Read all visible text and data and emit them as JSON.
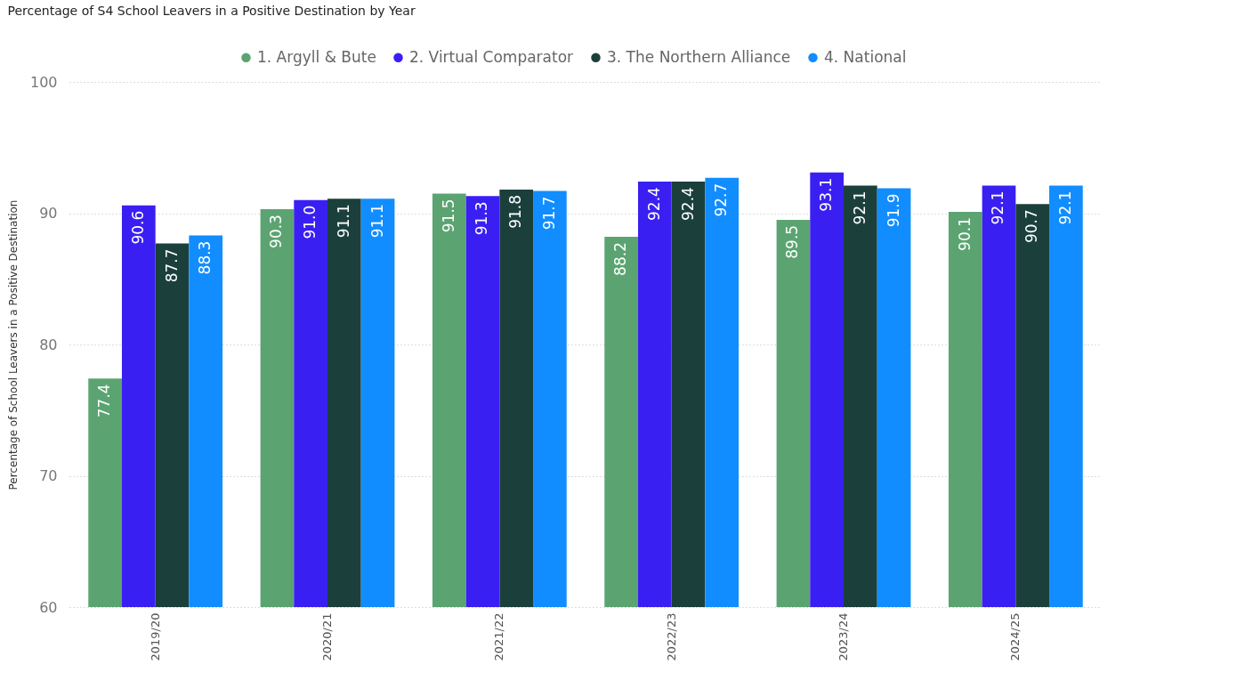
{
  "chart_data": {
    "type": "bar",
    "title": "Percentage of S4 School Leavers in a Positive Destination by Year",
    "ylabel": "Percentage of School Leavers in a Positive Destination",
    "categories": [
      "2019/20",
      "2020/21",
      "2021/22",
      "2022/23",
      "2023/24",
      "2024/25"
    ],
    "series": [
      {
        "name": "1. Argyll & Bute",
        "color": "#5ba472",
        "values": [
          77.4,
          90.3,
          91.5,
          88.2,
          89.5,
          90.1
        ],
        "value_labels": [
          "77.4",
          "90.3",
          "91.5",
          "88.2",
          "89.5",
          "90.1"
        ]
      },
      {
        "name": "2. Virtual Comparator",
        "color": "#3a1ff2",
        "values": [
          90.6,
          91.0,
          91.3,
          92.4,
          93.1,
          92.1
        ],
        "value_labels": [
          "90.6",
          "91.0",
          "91.3",
          "92.4",
          "93.1",
          "92.1"
        ]
      },
      {
        "name": "3. The Northern Alliance",
        "color": "#1b403c",
        "values": [
          87.7,
          91.1,
          91.8,
          92.4,
          92.1,
          90.7
        ],
        "value_labels": [
          "87.7",
          "91.1",
          "91.8",
          "92.4",
          "92.1",
          "90.7"
        ]
      },
      {
        "name": "4. National",
        "color": "#118dff",
        "values": [
          88.3,
          91.1,
          91.7,
          92.7,
          91.9,
          92.1
        ],
        "value_labels": [
          "88.3",
          "91.1",
          "91.7",
          "92.7",
          "91.9",
          "92.1"
        ]
      }
    ],
    "ylim": [
      60,
      100
    ],
    "yticks": [
      60,
      70,
      80,
      90,
      100
    ],
    "grid": "y",
    "legend": "top"
  }
}
